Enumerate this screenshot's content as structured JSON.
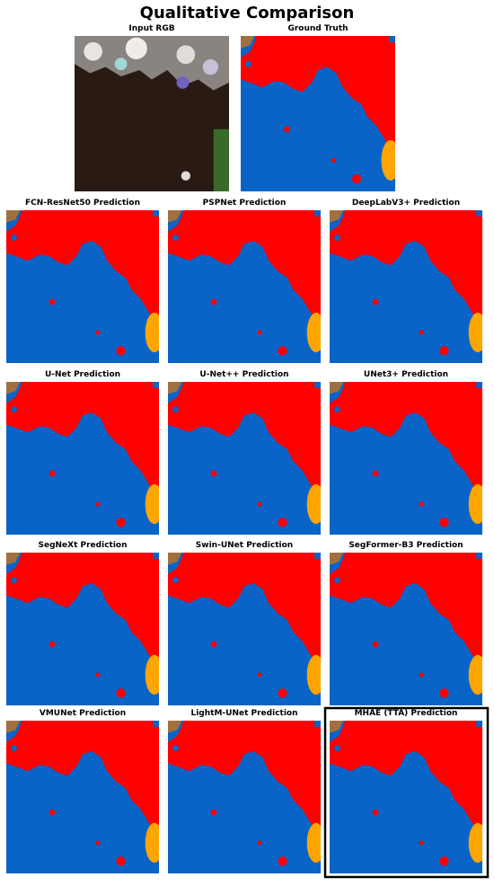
{
  "title": "Qualitative Comparison",
  "panels": [
    {
      "label": "Input RGB"
    },
    {
      "label": "Ground Truth"
    },
    {
      "label": "FCN-ResNet50 Prediction"
    },
    {
      "label": "PSPNet Prediction"
    },
    {
      "label": "DeepLabV3+ Prediction"
    },
    {
      "label": "U-Net Prediction"
    },
    {
      "label": "U-Net++ Prediction"
    },
    {
      "label": "UNet3+ Prediction"
    },
    {
      "label": "SegNeXt Prediction"
    },
    {
      "label": "Swin-UNet Prediction"
    },
    {
      "label": "SegFormer-B3 Prediction"
    },
    {
      "label": "VMUNet Prediction"
    },
    {
      "label": "LightM-UNet Prediction"
    },
    {
      "label": "MHAE (TTA) Prediction"
    }
  ]
}
